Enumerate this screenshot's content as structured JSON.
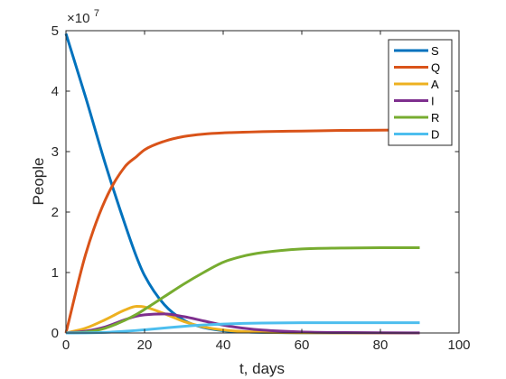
{
  "chart_data": {
    "type": "line",
    "title": "",
    "xlabel": "t, days",
    "ylabel": "People",
    "xlim": [
      0,
      100
    ],
    "ylim": [
      0,
      50000000
    ],
    "x_ticks": [
      0,
      20,
      40,
      60,
      80,
      100
    ],
    "y_ticks": [
      0,
      10000000,
      20000000,
      30000000,
      40000000,
      50000000
    ],
    "x_tick_labels": [
      "0",
      "20",
      "40",
      "60",
      "80",
      "100"
    ],
    "y_tick_labels": [
      "0",
      "1",
      "2",
      "3",
      "4",
      "5"
    ],
    "y_multiplier_base": "×10",
    "y_multiplier_exp": "7",
    "grid": false,
    "legend_position": "top-right",
    "x": [
      0,
      5,
      10,
      15,
      18,
      20,
      25,
      30,
      35,
      40,
      45,
      50,
      60,
      70,
      80,
      90
    ],
    "series": [
      {
        "name": "S",
        "color": "#0072BD",
        "values": [
          49500000,
          39000000,
          28000000,
          18000000,
          12500000,
          9500000,
          4700000,
          2100000,
          900000,
          380000,
          180000,
          90000,
          20000,
          10000,
          5000,
          3000
        ]
      },
      {
        "name": "Q",
        "color": "#D95319",
        "values": [
          0,
          13000000,
          22000000,
          27500000,
          29200000,
          30300000,
          31700000,
          32500000,
          32900000,
          33100000,
          33200000,
          33300000,
          33400000,
          33500000,
          33550000,
          33600000
        ]
      },
      {
        "name": "A",
        "color": "#EDB120",
        "values": [
          0,
          800000,
          2200000,
          3800000,
          4400000,
          4300000,
          3200000,
          1900000,
          1000000,
          500000,
          250000,
          130000,
          40000,
          15000,
          6000,
          3000
        ]
      },
      {
        "name": "I",
        "color": "#7E2F8E",
        "values": [
          0,
          300000,
          1000000,
          2200000,
          2800000,
          3000000,
          3150000,
          2700000,
          2000000,
          1300000,
          800000,
          480000,
          170000,
          70000,
          30000,
          15000
        ]
      },
      {
        "name": "R",
        "color": "#77AC30",
        "values": [
          0,
          150000,
          800000,
          2100000,
          3100000,
          3900000,
          6000000,
          8100000,
          10000000,
          11700000,
          12700000,
          13300000,
          13900000,
          14050000,
          14100000,
          14100000
        ]
      },
      {
        "name": "D",
        "color": "#4DBEEE",
        "values": [
          0,
          20000,
          100000,
          280000,
          420000,
          530000,
          820000,
          1100000,
          1320000,
          1480000,
          1580000,
          1640000,
          1690000,
          1700000,
          1700000,
          1700000
        ]
      }
    ]
  }
}
